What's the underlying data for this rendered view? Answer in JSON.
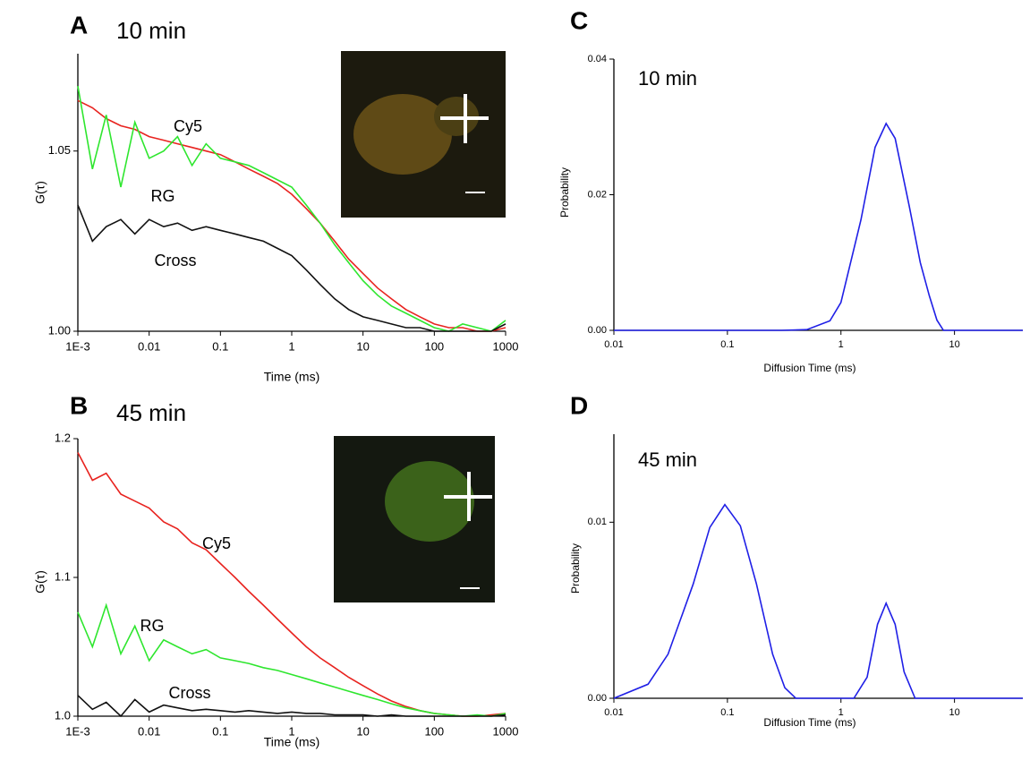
{
  "chart_data": [
    {
      "type": "line",
      "panel": "A",
      "title": "10 min",
      "xlabel": "Time (ms)",
      "ylabel": "G(τ)",
      "xscale": "log",
      "x": [
        0.001,
        0.0016,
        0.0025,
        0.004,
        0.0063,
        0.01,
        0.016,
        0.025,
        0.04,
        0.063,
        0.1,
        0.16,
        0.25,
        0.4,
        0.63,
        1,
        1.6,
        2.5,
        4,
        6.3,
        10,
        16,
        25,
        40,
        63,
        100,
        160,
        250,
        400,
        630,
        1000
      ],
      "series": [
        {
          "name": "Cy5",
          "color": "#e8231f",
          "values": [
            1.064,
            1.062,
            1.059,
            1.057,
            1.056,
            1.054,
            1.053,
            1.052,
            1.051,
            1.05,
            1.049,
            1.047,
            1.045,
            1.043,
            1.041,
            1.038,
            1.034,
            1.03,
            1.025,
            1.02,
            1.016,
            1.012,
            1.009,
            1.006,
            1.004,
            1.002,
            1.001,
            1.001,
            1.0,
            1.0,
            1.001
          ]
        },
        {
          "name": "RG",
          "color": "#2ee62e",
          "values": [
            1.068,
            1.045,
            1.06,
            1.04,
            1.058,
            1.048,
            1.05,
            1.054,
            1.046,
            1.052,
            1.048,
            1.047,
            1.046,
            1.044,
            1.042,
            1.04,
            1.035,
            1.03,
            1.024,
            1.019,
            1.014,
            1.01,
            1.007,
            1.005,
            1.003,
            1.001,
            1.0,
            1.002,
            1.001,
            1.0,
            1.003
          ]
        },
        {
          "name": "Cross",
          "color": "#111111",
          "values": [
            1.035,
            1.025,
            1.029,
            1.031,
            1.027,
            1.031,
            1.029,
            1.03,
            1.028,
            1.029,
            1.028,
            1.027,
            1.026,
            1.025,
            1.023,
            1.021,
            1.017,
            1.013,
            1.009,
            1.006,
            1.004,
            1.003,
            1.002,
            1.001,
            1.001,
            1.0,
            1.0,
            1.0,
            1.0,
            1.0,
            1.002
          ]
        }
      ],
      "xlim": [
        0.001,
        1000
      ],
      "ylim": [
        1.0,
        1.077
      ],
      "xticks": [
        {
          "value": 0.001,
          "label": "1E-3"
        },
        0.01,
        0.1,
        1,
        10,
        100,
        1000
      ],
      "yticks": [
        {
          "value": 1.0,
          "label": "1.00"
        },
        1.05
      ]
    },
    {
      "type": "line",
      "panel": "B",
      "title": "45 min",
      "xlabel": "Time (ms)",
      "ylabel": "G(τ)",
      "xscale": "log",
      "x": [
        0.001,
        0.0016,
        0.0025,
        0.004,
        0.0063,
        0.01,
        0.016,
        0.025,
        0.04,
        0.063,
        0.1,
        0.16,
        0.25,
        0.4,
        0.63,
        1,
        1.6,
        2.5,
        4,
        6.3,
        10,
        16,
        25,
        40,
        63,
        100,
        160,
        250,
        400,
        630,
        1000
      ],
      "series": [
        {
          "name": "Cy5",
          "color": "#e8231f",
          "values": [
            1.19,
            1.17,
            1.175,
            1.16,
            1.155,
            1.15,
            1.14,
            1.135,
            1.125,
            1.12,
            1.11,
            1.1,
            1.09,
            1.08,
            1.07,
            1.06,
            1.05,
            1.042,
            1.035,
            1.028,
            1.022,
            1.016,
            1.011,
            1.007,
            1.004,
            1.002,
            1.001,
            1.0,
            1.0,
            1.001,
            1.002
          ]
        },
        {
          "name": "RG",
          "color": "#2ee62e",
          "values": [
            1.075,
            1.05,
            1.08,
            1.045,
            1.065,
            1.04,
            1.055,
            1.05,
            1.045,
            1.048,
            1.042,
            1.04,
            1.038,
            1.035,
            1.033,
            1.03,
            1.027,
            1.024,
            1.021,
            1.018,
            1.015,
            1.012,
            1.009,
            1.006,
            1.004,
            1.002,
            1.001,
            1.0,
            1.001,
            1.0,
            1.002
          ]
        },
        {
          "name": "Cross",
          "color": "#111111",
          "values": [
            1.015,
            1.005,
            1.01,
            1.0,
            1.012,
            1.003,
            1.008,
            1.006,
            1.004,
            1.005,
            1.004,
            1.003,
            1.004,
            1.003,
            1.002,
            1.003,
            1.002,
            1.002,
            1.001,
            1.001,
            1.001,
            1.0,
            1.001,
            1.0,
            1.0,
            1.0,
            1.0,
            1.0,
            1.0,
            1.0,
            1.001
          ]
        }
      ],
      "xlim": [
        0.001,
        1000
      ],
      "ylim": [
        1.0,
        1.2
      ],
      "xticks": [
        {
          "value": 0.001,
          "label": "1E-3"
        },
        0.01,
        0.1,
        1,
        10,
        100,
        1000
      ],
      "yticks": [
        {
          "value": 1.0,
          "label": "1.0"
        },
        1.1,
        1.2
      ]
    },
    {
      "type": "line",
      "panel": "C",
      "title": "10 min",
      "xlabel": "Diffusion Time (ms)",
      "ylabel": "Probability",
      "xscale": "log",
      "x": [
        0.01,
        0.1,
        0.3,
        0.5,
        0.8,
        1,
        1.5,
        2,
        2.5,
        3,
        4,
        5,
        6,
        7,
        8,
        10,
        40
      ],
      "series": [
        {
          "color": "#1f1fe6",
          "values": [
            0,
            0,
            0,
            0.0001,
            0.0014,
            0.0041,
            0.0163,
            0.027,
            0.0305,
            0.0283,
            0.0183,
            0.01,
            0.0051,
            0.0015,
            0,
            0,
            0
          ]
        }
      ],
      "xlim": [
        0.01,
        40
      ],
      "ylim": [
        0,
        0.04
      ],
      "xticks": [
        0.01,
        0.1,
        1,
        10
      ],
      "yticks": [
        {
          "value": 0,
          "label": "0.00"
        },
        0.02,
        0.04
      ]
    },
    {
      "type": "line",
      "panel": "D",
      "title": "45 min",
      "xlabel": "Diffusion Time (ms)",
      "ylabel": "Probability",
      "xscale": "log",
      "x": [
        0.01,
        0.02,
        0.03,
        0.05,
        0.07,
        0.095,
        0.13,
        0.18,
        0.25,
        0.32,
        0.4,
        1.3,
        1.7,
        2.1,
        2.5,
        3,
        3.6,
        4.5,
        40
      ],
      "series": [
        {
          "color": "#1f1fe6",
          "values": [
            0,
            0.0008,
            0.0025,
            0.0065,
            0.0097,
            0.011,
            0.0098,
            0.0065,
            0.0025,
            0.0006,
            0,
            0,
            0.0012,
            0.0042,
            0.0054,
            0.0042,
            0.0015,
            0,
            0
          ]
        }
      ],
      "xlim": [
        0.01,
        40
      ],
      "ylim": [
        0,
        0.015
      ],
      "xticks": [
        0.01,
        0.1,
        1,
        10
      ],
      "yticks": [
        {
          "value": 0,
          "label": "0.00"
        },
        0.01
      ]
    }
  ]
}
